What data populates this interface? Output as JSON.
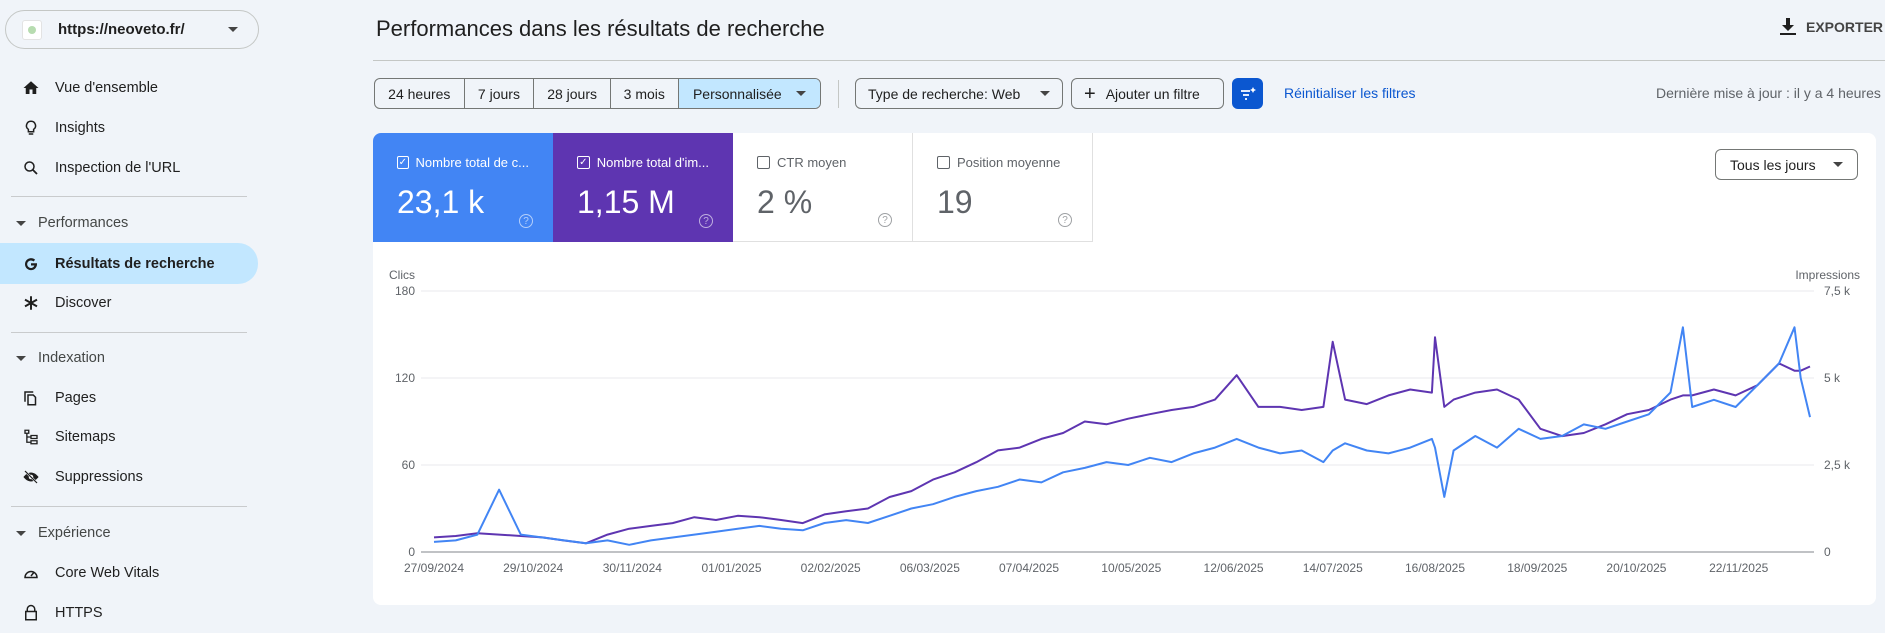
{
  "property": {
    "url": "https://neoveto.fr/"
  },
  "sidebar": {
    "items": [
      {
        "label": "Vue d'ensemble",
        "icon": "home-icon"
      },
      {
        "label": "Insights",
        "icon": "lightbulb-icon"
      },
      {
        "label": "Inspection de l'URL",
        "icon": "search-icon"
      }
    ],
    "sections": [
      {
        "label": "Performances",
        "items": [
          {
            "label": "Résultats de recherche",
            "icon": "google-g-icon",
            "active": true
          },
          {
            "label": "Discover",
            "icon": "asterisk-icon"
          }
        ]
      },
      {
        "label": "Indexation",
        "items": [
          {
            "label": "Pages",
            "icon": "pages-icon"
          },
          {
            "label": "Sitemaps",
            "icon": "sitemap-icon"
          },
          {
            "label": "Suppressions",
            "icon": "eye-off-icon"
          }
        ]
      },
      {
        "label": "Expérience",
        "items": [
          {
            "label": "Core Web Vitals",
            "icon": "gauge-icon"
          },
          {
            "label": "HTTPS",
            "icon": "lock-icon"
          }
        ]
      }
    ]
  },
  "header": {
    "title": "Performances dans les résultats de recherche",
    "export_label": "EXPORTER"
  },
  "filters": {
    "ranges": [
      "24 heures",
      "7 jours",
      "28 jours",
      "3 mois",
      "Personnalisée"
    ],
    "selected_range": "Personnalisée",
    "search_type": "Type de recherche: Web",
    "add_filter": "Ajouter un filtre",
    "reset": "Réinitialiser les filtres",
    "last_update": "Dernière mise à jour : il y a 4 heures"
  },
  "metrics": [
    {
      "label": "Nombre total de c...",
      "value": "23,1 k",
      "checked": true,
      "color": "#4285f4"
    },
    {
      "label": "Nombre total d'im...",
      "value": "1,15 M",
      "checked": true,
      "color": "#5e35b1"
    },
    {
      "label": "CTR moyen",
      "value": "2 %",
      "checked": false
    },
    {
      "label": "Position moyenne",
      "value": "19",
      "checked": false
    }
  ],
  "granularity": "Tous les jours",
  "chart_data": {
    "type": "line",
    "left_axis": {
      "label": "Clics",
      "ticks": [
        "0",
        "60",
        "120",
        "180"
      ],
      "range": [
        0,
        180
      ]
    },
    "right_axis": {
      "label": "Impressions",
      "ticks": [
        "0",
        "2,5 k",
        "5 k",
        "7,5 k"
      ],
      "range": [
        0,
        7500
      ]
    },
    "x_ticks": [
      "27/09/2024",
      "29/10/2024",
      "30/11/2024",
      "01/01/2025",
      "02/02/2025",
      "06/03/2025",
      "07/04/2025",
      "10/05/2025",
      "12/06/2025",
      "14/07/2025",
      "16/08/2025",
      "18/09/2025",
      "20/10/2025",
      "22/11/2025"
    ],
    "x_range": [
      "2024-09-27",
      "2025-12-15"
    ],
    "grid": true,
    "series": [
      {
        "name": "Clics",
        "axis": "left",
        "color": "#4285f4"
      },
      {
        "name": "Impressions",
        "axis": "right",
        "color": "#5e35b1"
      }
    ],
    "points": [
      [
        "2024-09-27",
        7,
        420
      ],
      [
        "2024-10-04",
        8,
        460
      ],
      [
        "2024-10-11",
        12,
        540
      ],
      [
        "2024-10-18",
        43,
        500
      ],
      [
        "2024-10-25",
        12,
        460
      ],
      [
        "2024-11-01",
        10,
        420
      ],
      [
        "2024-11-08",
        8,
        330
      ],
      [
        "2024-11-15",
        6,
        250
      ],
      [
        "2024-11-22",
        8,
        500
      ],
      [
        "2024-11-29",
        5,
        670
      ],
      [
        "2024-12-06",
        8,
        750
      ],
      [
        "2024-12-13",
        10,
        830
      ],
      [
        "2024-12-20",
        12,
        1000
      ],
      [
        "2024-12-27",
        14,
        920
      ],
      [
        "2025-01-03",
        16,
        1040
      ],
      [
        "2025-01-10",
        18,
        1000
      ],
      [
        "2025-01-17",
        16,
        920
      ],
      [
        "2025-01-24",
        15,
        830
      ],
      [
        "2025-01-31",
        20,
        1080
      ],
      [
        "2025-02-07",
        22,
        1170
      ],
      [
        "2025-02-14",
        20,
        1250
      ],
      [
        "2025-02-21",
        25,
        1580
      ],
      [
        "2025-02-28",
        30,
        1750
      ],
      [
        "2025-03-07",
        33,
        2080
      ],
      [
        "2025-03-14",
        38,
        2290
      ],
      [
        "2025-03-21",
        42,
        2580
      ],
      [
        "2025-03-28",
        45,
        2920
      ],
      [
        "2025-04-04",
        50,
        3000
      ],
      [
        "2025-04-11",
        48,
        3250
      ],
      [
        "2025-04-18",
        55,
        3420
      ],
      [
        "2025-04-25",
        58,
        3750
      ],
      [
        "2025-05-02",
        62,
        3670
      ],
      [
        "2025-05-09",
        60,
        3830
      ],
      [
        "2025-05-16",
        65,
        3960
      ],
      [
        "2025-05-23",
        62,
        4080
      ],
      [
        "2025-05-30",
        68,
        4170
      ],
      [
        "2025-06-06",
        72,
        4380
      ],
      [
        "2025-06-13",
        78,
        5080
      ],
      [
        "2025-06-20",
        72,
        4170
      ],
      [
        "2025-06-27",
        68,
        4170
      ],
      [
        "2025-07-04",
        70,
        4080
      ],
      [
        "2025-07-11",
        62,
        4170
      ],
      [
        "2025-07-14",
        70,
        6040
      ],
      [
        "2025-07-18",
        75,
        4380
      ],
      [
        "2025-07-25",
        70,
        4250
      ],
      [
        "2025-08-01",
        68,
        4500
      ],
      [
        "2025-08-08",
        72,
        4670
      ],
      [
        "2025-08-15",
        78,
        4580
      ],
      [
        "2025-08-16",
        72,
        6170
      ],
      [
        "2025-08-19",
        38,
        4170
      ],
      [
        "2025-08-22",
        70,
        4380
      ],
      [
        "2025-08-29",
        80,
        4580
      ],
      [
        "2025-09-05",
        72,
        4670
      ],
      [
        "2025-09-12",
        85,
        4380
      ],
      [
        "2025-09-19",
        78,
        3540
      ],
      [
        "2025-09-26",
        80,
        3330
      ],
      [
        "2025-10-03",
        88,
        3420
      ],
      [
        "2025-10-10",
        85,
        3670
      ],
      [
        "2025-10-17",
        90,
        3960
      ],
      [
        "2025-10-24",
        95,
        4080
      ],
      [
        "2025-10-31",
        110,
        4380
      ],
      [
        "2025-11-04",
        155,
        4500
      ],
      [
        "2025-11-07",
        100,
        4500
      ],
      [
        "2025-11-14",
        105,
        4670
      ],
      [
        "2025-11-21",
        100,
        4500
      ],
      [
        "2025-11-28",
        115,
        4790
      ],
      [
        "2025-12-05",
        130,
        5420
      ],
      [
        "2025-12-10",
        155,
        5210
      ],
      [
        "2025-12-12",
        120,
        5210
      ],
      [
        "2025-12-15",
        93,
        5330
      ]
    ]
  }
}
